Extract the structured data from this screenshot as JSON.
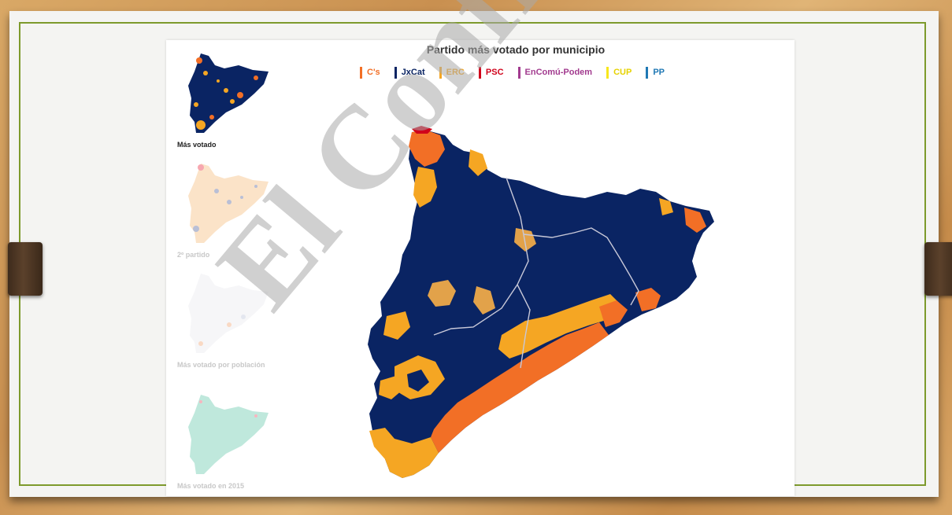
{
  "chart": {
    "title": "Partido más votado por municipio"
  },
  "legend": [
    {
      "label": "C's",
      "color": "#f26f26"
    },
    {
      "label": "JxCat",
      "color": "#0a2463"
    },
    {
      "label": "ERC",
      "color": "#f5a623"
    },
    {
      "label": "PSC",
      "color": "#d0021b"
    },
    {
      "label": "EnComú-Podem",
      "color": "#a23b8f"
    },
    {
      "label": "CUP",
      "color": "#f8e71c"
    },
    {
      "label": "PP",
      "color": "#1f78b4"
    }
  ],
  "thumbnails": [
    {
      "label": "Más votado",
      "active": true
    },
    {
      "label": "2º partido",
      "active": false
    },
    {
      "label": "Más votado por población",
      "active": false
    },
    {
      "label": "Más votado en 2015",
      "active": false
    }
  ],
  "watermark": "El Confidencial",
  "colors": {
    "jxcat": "#0a2463",
    "cs": "#f26f26",
    "erc": "#f5a623",
    "psc": "#d0021b",
    "border": "#7d9a2c"
  }
}
